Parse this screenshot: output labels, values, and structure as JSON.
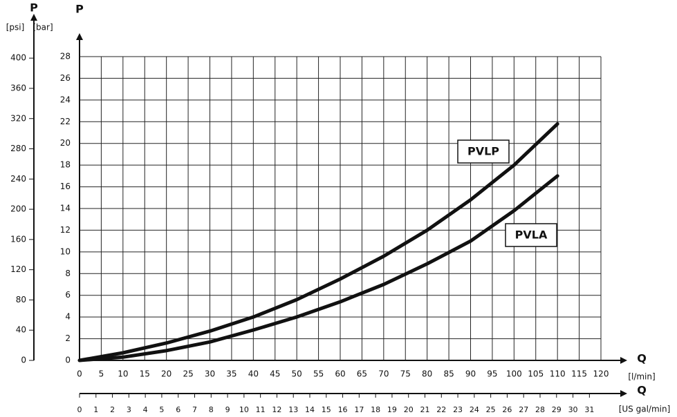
{
  "chart_data": {
    "type": "line",
    "x": [
      0,
      10,
      20,
      30,
      40,
      50,
      60,
      70,
      80,
      90,
      100,
      110
    ],
    "series": [
      {
        "name": "PVLP",
        "color": "#111111",
        "values": [
          0,
          0.7,
          1.6,
          2.7,
          4.0,
          5.6,
          7.5,
          9.6,
          12.0,
          14.8,
          18.0,
          21.8
        ]
      },
      {
        "name": "PVLA",
        "color": "#111111",
        "values": [
          0,
          0.3,
          0.9,
          1.7,
          2.8,
          4.0,
          5.4,
          7.0,
          8.9,
          11.0,
          13.8,
          17.0
        ]
      }
    ],
    "y_label": "P",
    "y_unit": "[bar]",
    "y2_label": "P",
    "y2_unit": "[psi]",
    "x_label": "Q",
    "x_unit": "[l/min]",
    "x2_label": "Q",
    "x2_unit": "[US gal/min]",
    "ylim": [
      0,
      28
    ],
    "yticks": [
      0,
      2,
      4,
      6,
      8,
      10,
      12,
      14,
      16,
      18,
      20,
      22,
      24,
      26,
      28
    ],
    "y2lim": [
      0,
      402
    ],
    "y2ticks": [
      0,
      40,
      80,
      120,
      160,
      200,
      240,
      280,
      320,
      360,
      400
    ],
    "xlim": [
      0,
      120
    ],
    "xticks": [
      0,
      5,
      10,
      15,
      20,
      25,
      30,
      35,
      40,
      45,
      50,
      55,
      60,
      65,
      70,
      75,
      80,
      85,
      90,
      95,
      100,
      105,
      110,
      115,
      120
    ],
    "x2lim": [
      0,
      31.7
    ],
    "x2ticks": [
      0,
      1,
      2,
      3,
      4,
      5,
      6,
      7,
      8,
      9,
      10,
      11,
      12,
      13,
      14,
      15,
      16,
      17,
      18,
      19,
      20,
      21,
      22,
      23,
      24,
      25,
      26,
      27,
      28,
      29,
      30,
      31
    ],
    "grid": true
  }
}
